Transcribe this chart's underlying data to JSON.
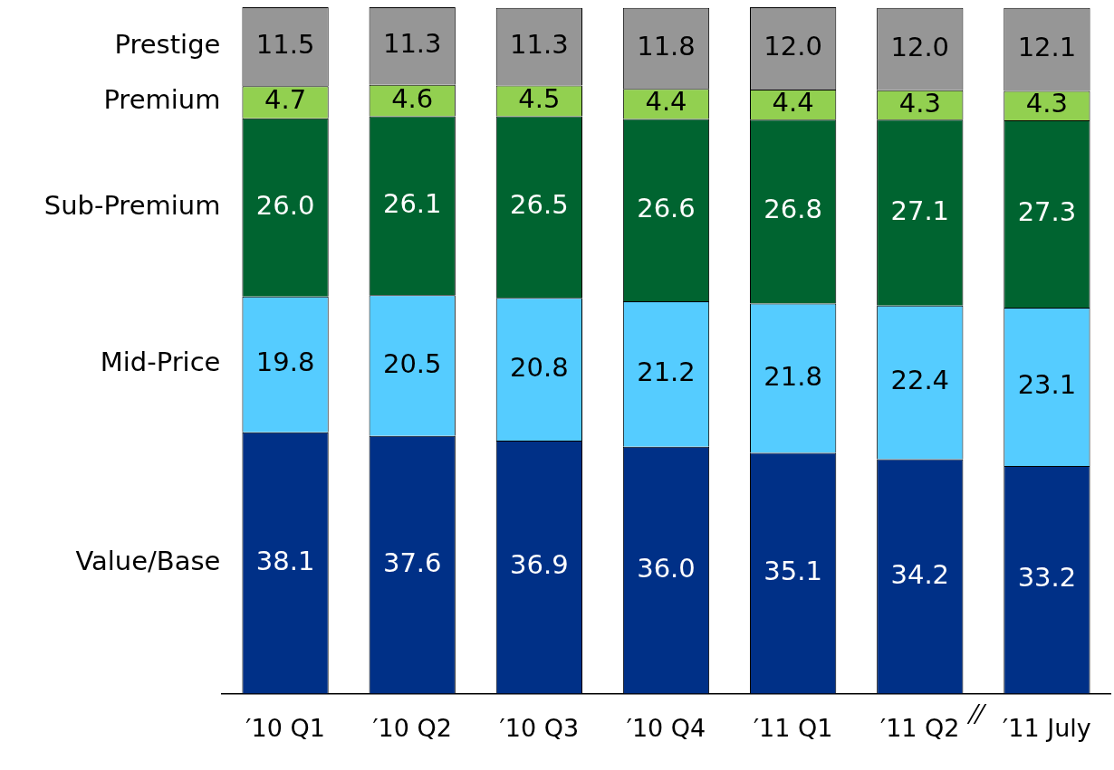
{
  "chart_data": {
    "type": "bar",
    "stacked": true,
    "legend": false,
    "grid": false,
    "tick_labels": "x",
    "categories": [
      "′10 Q1",
      "′10 Q2",
      "′10 Q3",
      "′10 Q4",
      "′11 Q1",
      "′11 Q2",
      "′11 July"
    ],
    "ylim": [
      0,
      100.1
    ],
    "series": [
      {
        "name": "Value/Base",
        "color": "#003087",
        "values": [
          38.1,
          37.6,
          36.9,
          36.0,
          35.1,
          34.2,
          33.2
        ],
        "value_labels": [
          "38.1",
          "37.6",
          "36.9",
          "36.0",
          "35.1",
          "34.2",
          "33.2"
        ]
      },
      {
        "name": "Mid-Price",
        "color": "#55ccff",
        "values": [
          19.8,
          20.5,
          20.8,
          21.2,
          21.8,
          22.4,
          23.1
        ],
        "value_labels": [
          "19.8",
          "20.5",
          "20.8",
          "21.2",
          "21.8",
          "22.4",
          "23.1"
        ]
      },
      {
        "name": "Sub-Premium",
        "color": "#006430",
        "values": [
          26.0,
          26.1,
          26.5,
          26.6,
          26.8,
          27.1,
          27.3
        ],
        "value_labels": [
          "26.0",
          "26.1",
          "26.5",
          "26.6",
          "26.8",
          "27.1",
          "27.3"
        ]
      },
      {
        "name": "Premium",
        "color": "#92d050",
        "values": [
          4.7,
          4.6,
          4.5,
          4.4,
          4.4,
          4.3,
          4.3
        ],
        "value_labels": [
          "4.7",
          "4.6",
          "4.5",
          "4.4",
          "4.4",
          "4.3",
          "4.3"
        ]
      },
      {
        "name": "Prestige",
        "color": "#969696",
        "values": [
          11.5,
          11.3,
          11.3,
          11.8,
          12.0,
          12.0,
          12.1
        ],
        "value_labels": [
          "11.5",
          "11.3",
          "11.3",
          "11.8",
          "12.0",
          "12.0",
          "12.1"
        ]
      }
    ]
  }
}
